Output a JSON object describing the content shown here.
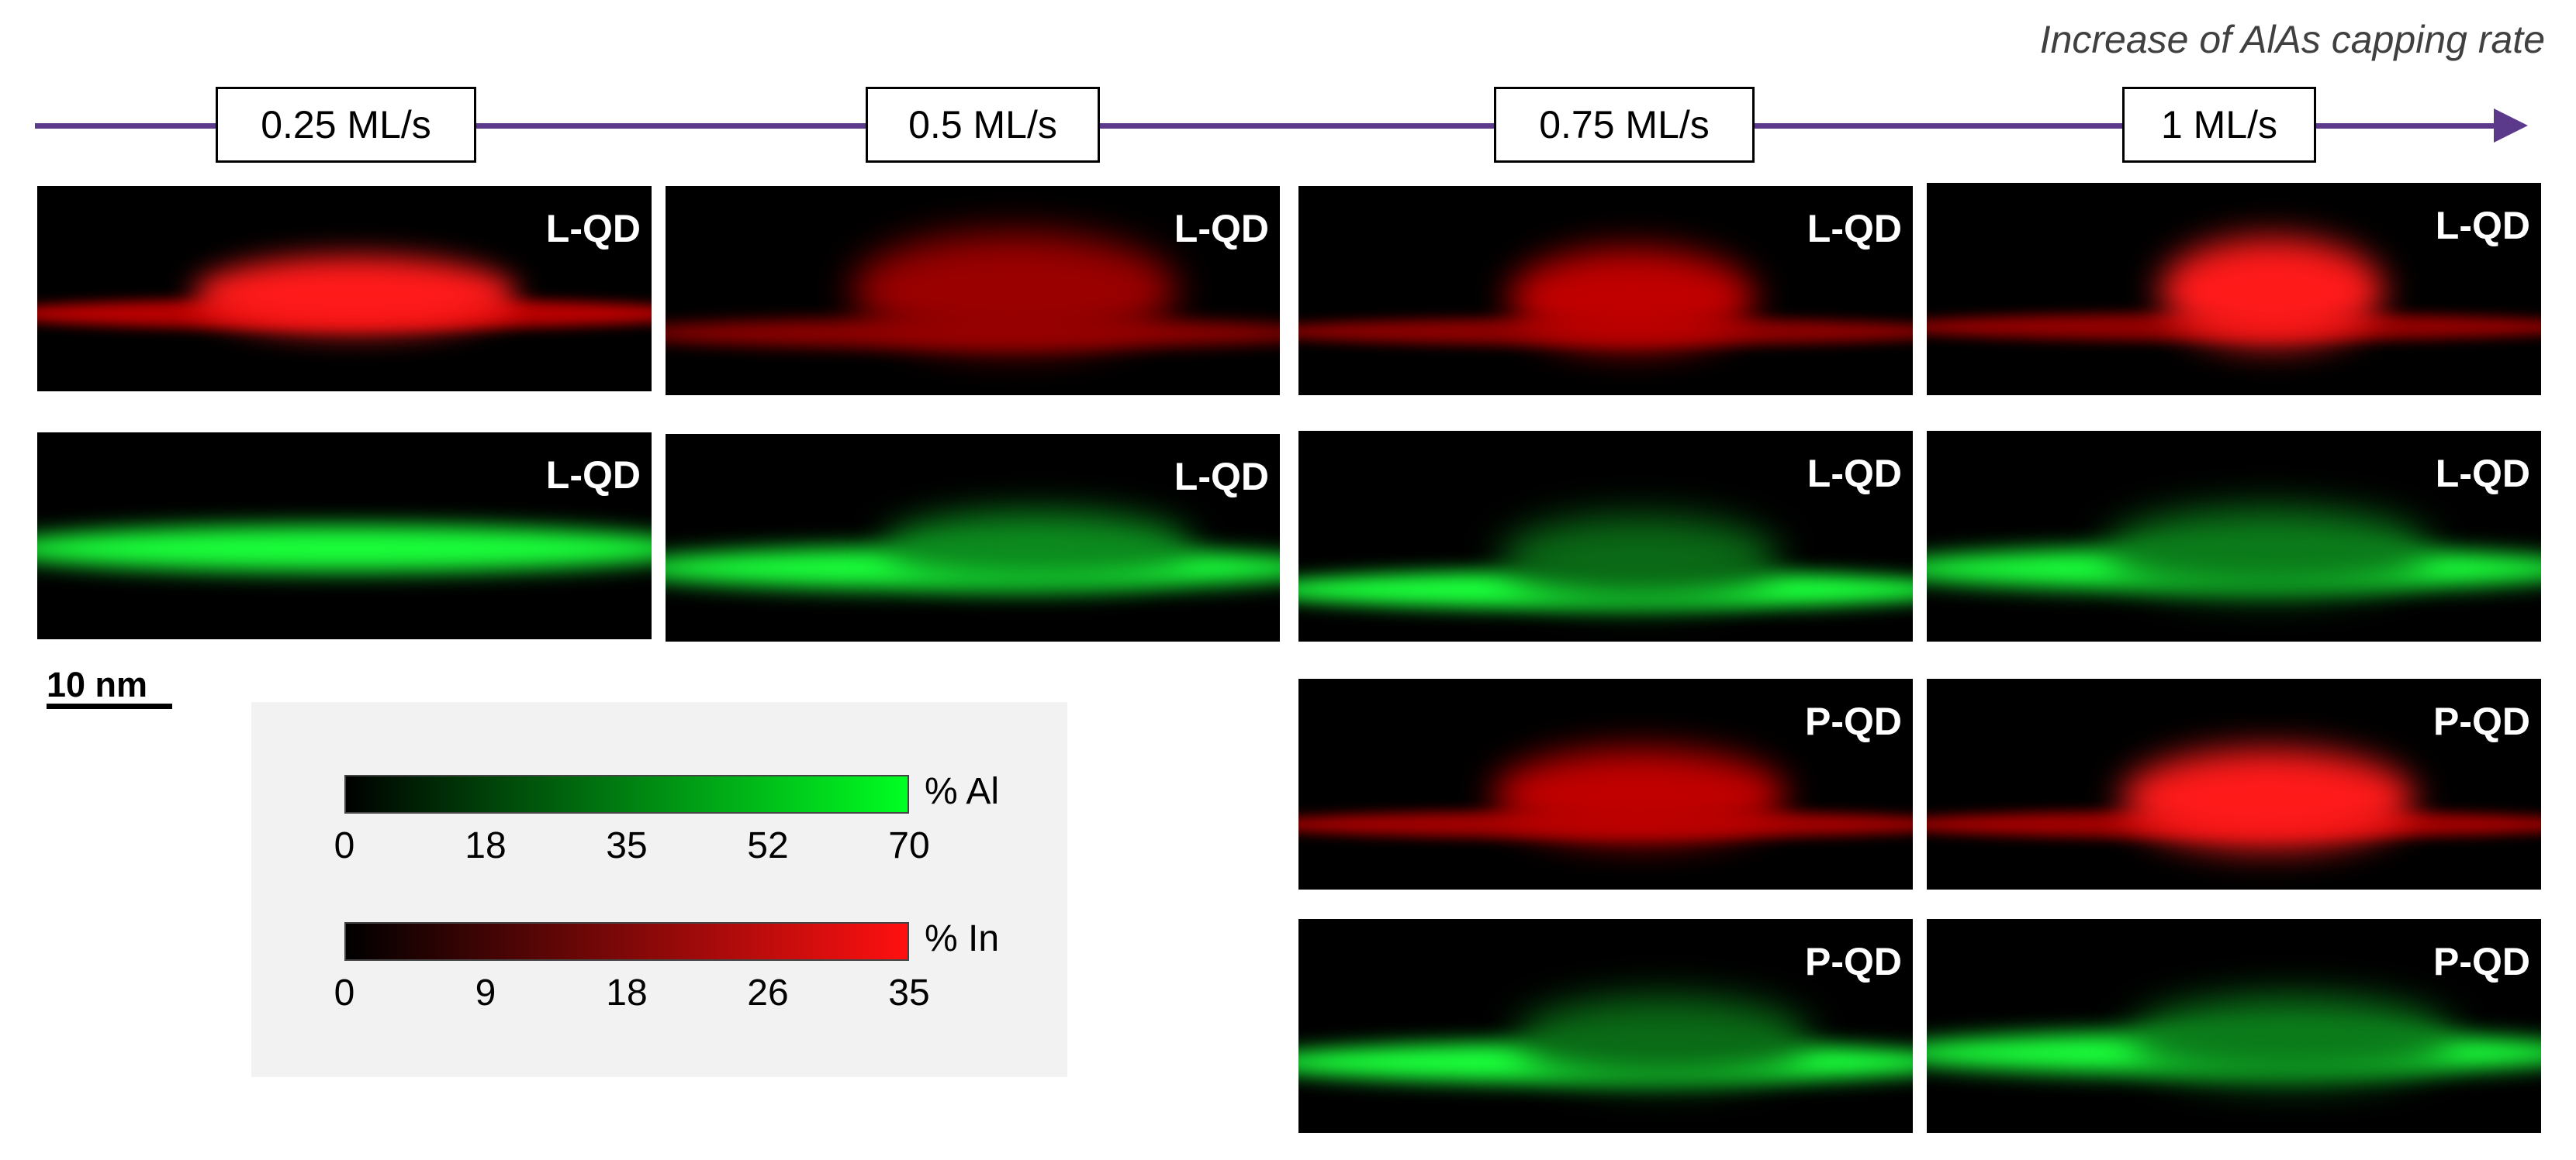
{
  "header": {
    "axis_title": "Increase of AlAs capping rate",
    "rates": [
      "0.25 ML/s",
      "0.5 ML/s",
      "0.75 ML/s",
      "1 ML/s"
    ]
  },
  "panels": {
    "labels": {
      "r1c1": "L-QD",
      "r1c2": "L-QD",
      "r1c3": "L-QD",
      "r1c4": "L-QD",
      "r2c1": "L-QD",
      "r2c2": "L-QD",
      "r2c3": "L-QD",
      "r2c4": "L-QD",
      "r3c3": "P-QD",
      "r3c4": "P-QD",
      "r4c3": "P-QD",
      "r4c4": "P-QD"
    },
    "colors": {
      "indium": "#ff1a1a",
      "aluminium": "#1aff3a",
      "background": "#000000"
    }
  },
  "scale_bar": {
    "label": "10 nm"
  },
  "legend": {
    "al": {
      "unit": "% Al",
      "ticks": [
        "0",
        "18",
        "35",
        "52",
        "70"
      ],
      "color": "#00ff22"
    },
    "in": {
      "unit": "% In",
      "ticks": [
        "0",
        "9",
        "18",
        "26",
        "35"
      ],
      "color": "#ff1010"
    }
  }
}
